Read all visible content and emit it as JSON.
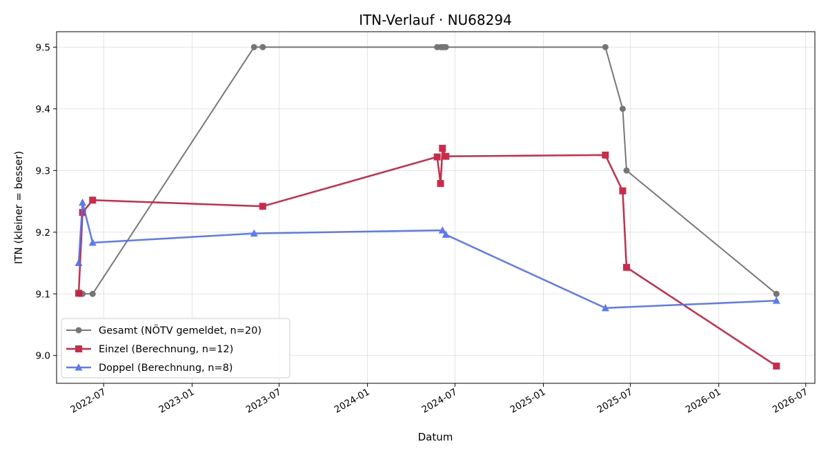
{
  "chart_data": {
    "type": "line",
    "title": "ITN-Verlauf · NU68294",
    "xlabel": "Datum",
    "ylabel": "ITN  (kleiner = besser)",
    "x_type": "date",
    "xlim": [
      "2022-03-25",
      "2026-07-20"
    ],
    "ylim": [
      8.955,
      9.525
    ],
    "x_ticks": [
      "2022-07-01",
      "2023-01-01",
      "2023-07-01",
      "2024-01-01",
      "2024-07-01",
      "2025-01-01",
      "2025-07-01",
      "2026-01-01",
      "2026-07-01"
    ],
    "x_tick_labels": [
      "2022-07",
      "2023-01",
      "2023-07",
      "2024-01",
      "2024-07",
      "2025-01",
      "2025-07",
      "2026-01",
      "2026-07"
    ],
    "y_ticks": [
      9.0,
      9.1,
      9.2,
      9.3,
      9.4,
      9.5
    ],
    "y_tick_labels": [
      "9.0",
      "9.1",
      "9.2",
      "9.3",
      "9.4",
      "9.5"
    ],
    "grid": true,
    "legend_position": "lower-left",
    "series": [
      {
        "name": "Gesamt (NÖTV gemeldet, n=20)",
        "color": "#555555",
        "marker": "circle",
        "points": [
          {
            "x": "2022-05-12",
            "y": 9.1
          },
          {
            "x": "2022-05-18",
            "y": 9.1
          },
          {
            "x": "2022-06-08",
            "y": 9.1
          },
          {
            "x": "2023-05-10",
            "y": 9.5
          },
          {
            "x": "2023-05-28",
            "y": 9.5
          },
          {
            "x": "2024-05-25",
            "y": 9.5
          },
          {
            "x": "2024-06-01",
            "y": 9.5
          },
          {
            "x": "2024-06-05",
            "y": 9.5
          },
          {
            "x": "2024-06-08",
            "y": 9.5
          },
          {
            "x": "2024-06-12",
            "y": 9.5
          },
          {
            "x": "2025-05-10",
            "y": 9.5
          },
          {
            "x": "2025-06-15",
            "y": 9.4
          },
          {
            "x": "2025-06-23",
            "y": 9.3
          },
          {
            "x": "2026-05-01",
            "y": 9.1
          }
        ]
      },
      {
        "name": "Einzel (Berechnung, n=12)",
        "color": "#c8203f",
        "marker": "square",
        "points": [
          {
            "x": "2022-05-10",
            "y": 9.101
          },
          {
            "x": "2022-05-18",
            "y": 9.232
          },
          {
            "x": "2022-06-08",
            "y": 9.252
          },
          {
            "x": "2023-05-28",
            "y": 9.242
          },
          {
            "x": "2024-05-25",
            "y": 9.322
          },
          {
            "x": "2024-06-01",
            "y": 9.279
          },
          {
            "x": "2024-06-05",
            "y": 9.336
          },
          {
            "x": "2024-06-12",
            "y": 9.323
          },
          {
            "x": "2025-05-10",
            "y": 9.325
          },
          {
            "x": "2025-06-15",
            "y": 9.267
          },
          {
            "x": "2025-06-23",
            "y": 9.143
          },
          {
            "x": "2026-05-01",
            "y": 8.983
          }
        ]
      },
      {
        "name": "Doppel (Berechnung, n=8)",
        "color": "#4f6ff0",
        "marker": "triangle",
        "points": [
          {
            "x": "2022-05-10",
            "y": 9.15
          },
          {
            "x": "2022-05-18",
            "y": 9.248
          },
          {
            "x": "2022-06-08",
            "y": 9.183
          },
          {
            "x": "2023-05-10",
            "y": 9.198
          },
          {
            "x": "2024-06-05",
            "y": 9.203
          },
          {
            "x": "2024-06-12",
            "y": 9.196
          },
          {
            "x": "2025-05-10",
            "y": 9.077
          },
          {
            "x": "2026-05-01",
            "y": 9.089
          }
        ]
      }
    ]
  }
}
